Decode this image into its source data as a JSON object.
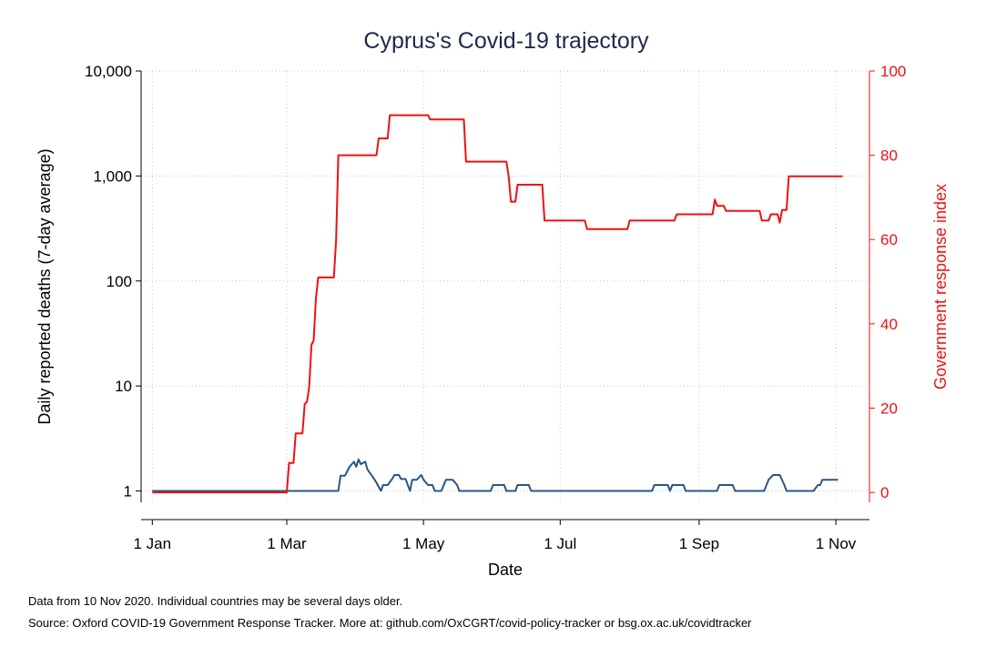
{
  "chart_data": {
    "type": "line",
    "title": "Cyprus's Covid-19 trajectory",
    "xlabel": "Date",
    "ylabel_left": "Daily reported deaths (7-day average)",
    "ylabel_right": "Government response index",
    "x_ticks": [
      "1 Jan",
      "1 Mar",
      "1 May",
      "1 Jul",
      "1 Sep",
      "1 Nov"
    ],
    "x_tick_days": [
      0,
      60,
      121,
      182,
      244,
      305
    ],
    "xlim": [
      -5,
      320
    ],
    "y_left_scale": "log",
    "y_left_ticks": [
      1,
      10,
      100,
      1000,
      10000
    ],
    "y_left_tick_labels": [
      "1",
      "10",
      "100",
      "1,000",
      "10,000"
    ],
    "y_left_lim": [
      0.78,
      10000
    ],
    "y_right_ticks": [
      0,
      20,
      40,
      60,
      80,
      100
    ],
    "y_right_lim": [
      -2.35,
      100
    ],
    "grid": true,
    "series": [
      {
        "name": "",
        "axis": "left",
        "color": "#2a5783",
        "points": [
          [
            "1 Jan",
            1
          ],
          [
            "29 Feb",
            1
          ],
          [
            "1 Mar",
            1
          ],
          [
            "24 Mar",
            1
          ],
          [
            "25 Mar",
            1.4
          ],
          [
            "27 Mar",
            1.4
          ],
          [
            "29 Mar",
            1.7
          ],
          [
            "31 Mar",
            1.9
          ],
          [
            "1 Apr",
            1.7
          ],
          [
            "2 Apr",
            2.0
          ],
          [
            "3 Apr",
            1.8
          ],
          [
            "5 Apr",
            1.9
          ],
          [
            "6 Apr",
            1.6
          ],
          [
            "8 Apr",
            1.4
          ],
          [
            "10 Apr",
            1.2
          ],
          [
            "12 Apr",
            1.0
          ],
          [
            "13 Apr",
            1.14
          ],
          [
            "15 Apr",
            1.14
          ],
          [
            "17 Apr",
            1.3
          ],
          [
            "18 Apr",
            1.42
          ],
          [
            "20 Apr",
            1.42
          ],
          [
            "21 Apr",
            1.3
          ],
          [
            "23 Apr",
            1.3
          ],
          [
            "24 Apr",
            1.14
          ],
          [
            "25 Apr",
            1.0
          ],
          [
            "26 Apr",
            1.28
          ],
          [
            "28 Apr",
            1.28
          ],
          [
            "30 Apr",
            1.42
          ],
          [
            "1 May",
            1.28
          ],
          [
            "3 May",
            1.14
          ],
          [
            "5 May",
            1.14
          ],
          [
            "6 May",
            1.0
          ],
          [
            "9 May",
            1.0
          ],
          [
            "11 May",
            1.28
          ],
          [
            "14 May",
            1.28
          ],
          [
            "16 May",
            1.14
          ],
          [
            "17 May",
            1.0
          ],
          [
            "31 May",
            1.0
          ],
          [
            "1 Jun",
            1.14
          ],
          [
            "6 Jun",
            1.14
          ],
          [
            "7 Jun",
            1.0
          ],
          [
            "11 Jun",
            1.0
          ],
          [
            "12 Jun",
            1.14
          ],
          [
            "17 Jun",
            1.14
          ],
          [
            "18 Jun",
            1.0
          ],
          [
            "11 Aug",
            1.0
          ],
          [
            "12 Aug",
            1.14
          ],
          [
            "18 Aug",
            1.14
          ],
          [
            "19 Aug",
            1.0
          ],
          [
            "20 Aug",
            1.14
          ],
          [
            "25 Aug",
            1.14
          ],
          [
            "26 Aug",
            1.0
          ],
          [
            "9 Sep",
            1.0
          ],
          [
            "10 Sep",
            1.14
          ],
          [
            "16 Sep",
            1.14
          ],
          [
            "17 Sep",
            1.0
          ],
          [
            "30 Sep",
            1.0
          ],
          [
            "2 Oct",
            1.28
          ],
          [
            "4 Oct",
            1.42
          ],
          [
            "7 Oct",
            1.42
          ],
          [
            "9 Oct",
            1.14
          ],
          [
            "10 Oct",
            1.0
          ],
          [
            "22 Oct",
            1.0
          ],
          [
            "24 Oct",
            1.14
          ],
          [
            "25 Oct",
            1.14
          ],
          [
            "26 Oct",
            1.28
          ],
          [
            "2 Nov",
            1.28
          ]
        ]
      },
      {
        "name": "",
        "axis": "right",
        "color": "#ee1111",
        "points": [
          [
            "1 Jan",
            0
          ],
          [
            "29 Feb",
            0
          ],
          [
            "1 Mar",
            0
          ],
          [
            "2 Mar",
            7.0
          ],
          [
            "4 Mar",
            7.0
          ],
          [
            "5 Mar",
            14.0
          ],
          [
            "8 Mar",
            14.0
          ],
          [
            "9 Mar",
            21.0
          ],
          [
            "10 Mar",
            21.5
          ],
          [
            "11 Mar",
            25.0
          ],
          [
            "12 Mar",
            35.0
          ],
          [
            "13 Mar",
            36.0
          ],
          [
            "14 Mar",
            46.0
          ],
          [
            "15 Mar",
            51.0
          ],
          [
            "22 Mar",
            51.0
          ],
          [
            "23 Mar",
            60.0
          ],
          [
            "24 Mar",
            80.0
          ],
          [
            "10 Apr",
            80.0
          ],
          [
            "11 Apr",
            84.0
          ],
          [
            "15 Apr",
            84.0
          ],
          [
            "16 Apr",
            89.5
          ],
          [
            "3 May",
            89.5
          ],
          [
            "4 May",
            88.5
          ],
          [
            "19 May",
            88.5
          ],
          [
            "20 May",
            78.5
          ],
          [
            "7 Jun",
            78.5
          ],
          [
            "8 Jun",
            75.0
          ],
          [
            "9 Jun",
            69.0
          ],
          [
            "11 Jun",
            69.0
          ],
          [
            "12 Jun",
            73.0
          ],
          [
            "23 Jun",
            73.0
          ],
          [
            "24 Jun",
            64.5
          ],
          [
            "12 Jul",
            64.5
          ],
          [
            "13 Jul",
            62.5
          ],
          [
            "31 Jul",
            62.5
          ],
          [
            "1 Aug",
            64.5
          ],
          [
            "21 Aug",
            64.5
          ],
          [
            "22 Aug",
            66.0
          ],
          [
            "7 Sep",
            66.0
          ],
          [
            "8 Sep",
            69.5
          ],
          [
            "9 Sep",
            68.0
          ],
          [
            "12 Sep",
            68.0
          ],
          [
            "13 Sep",
            66.8
          ],
          [
            "28 Sep",
            66.8
          ],
          [
            "29 Sep",
            64.5
          ],
          [
            "2 Oct",
            64.5
          ],
          [
            "3 Oct",
            66.0
          ],
          [
            "6 Oct",
            66.0
          ],
          [
            "7 Oct",
            64.0
          ],
          [
            "8 Oct",
            67.0
          ],
          [
            "10 Oct",
            67.0
          ],
          [
            "11 Oct",
            75.0
          ],
          [
            "4 Nov",
            75.0
          ]
        ]
      }
    ]
  },
  "footer": {
    "note": "Data from 10 Nov 2020. Individual countries may be several days older.",
    "source": "Source: Oxford COVID-19 Government Response Tracker. More at: github.com/OxCGRT/covid-policy-tracker or bsg.ox.ac.uk/covidtracker"
  },
  "colors": {
    "axis": "#000000",
    "right_axis": "#ee1111",
    "grid": "#c8c8c8",
    "title": "#1e2a4a"
  }
}
